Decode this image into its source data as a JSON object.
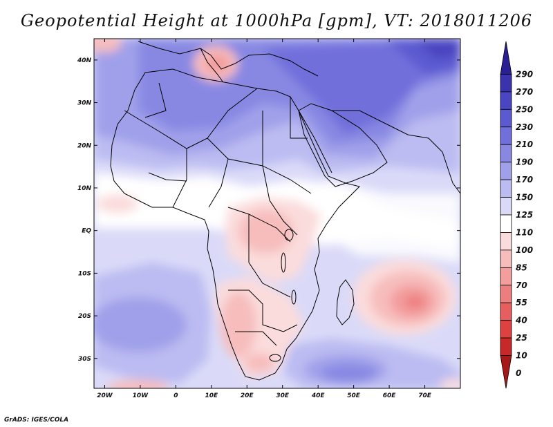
{
  "title": "Geopotential Height at 1000hPa [gpm], VT: 2018011206",
  "credit": "GrADS: IGES/COLA",
  "map": {
    "variable": "Geopotential Height",
    "level": "1000hPa",
    "units": "gpm",
    "valid_time": "2018011206",
    "lon_range": [
      -23,
      80
    ],
    "lat_range": [
      -37,
      45
    ],
    "lon_ticks": [
      {
        "value": -20,
        "label": "20W"
      },
      {
        "value": -10,
        "label": "10W"
      },
      {
        "value": 0,
        "label": "0"
      },
      {
        "value": 10,
        "label": "10E"
      },
      {
        "value": 20,
        "label": "20E"
      },
      {
        "value": 30,
        "label": "30E"
      },
      {
        "value": 40,
        "label": "40E"
      },
      {
        "value": 50,
        "label": "50E"
      },
      {
        "value": 60,
        "label": "60E"
      },
      {
        "value": 70,
        "label": "70E"
      }
    ],
    "lat_ticks": [
      {
        "value": 40,
        "label": "40N"
      },
      {
        "value": 30,
        "label": "30N"
      },
      {
        "value": 20,
        "label": "20N"
      },
      {
        "value": 10,
        "label": "10N"
      },
      {
        "value": 0,
        "label": "EQ"
      },
      {
        "value": -10,
        "label": "10S"
      },
      {
        "value": -20,
        "label": "20S"
      },
      {
        "value": -30,
        "label": "30S"
      }
    ]
  },
  "colorbar": {
    "levels": [
      "290",
      "270",
      "250",
      "230",
      "210",
      "190",
      "170",
      "150",
      "125",
      "110",
      "100",
      "85",
      "70",
      "55",
      "40",
      "25",
      "10",
      "0"
    ],
    "colors": [
      "#2b1f96",
      "#3a33ad",
      "#4a45c0",
      "#5c5ad0",
      "#716fdb",
      "#8888e3",
      "#a0a0ea",
      "#bcbcf2",
      "#dadaf8",
      "#ffffff",
      "#fbdcdc",
      "#f7bdbd",
      "#f39d9d",
      "#ee7e7e",
      "#e85e5e",
      "#df4040",
      "#c92828",
      "#a81818"
    ]
  }
}
